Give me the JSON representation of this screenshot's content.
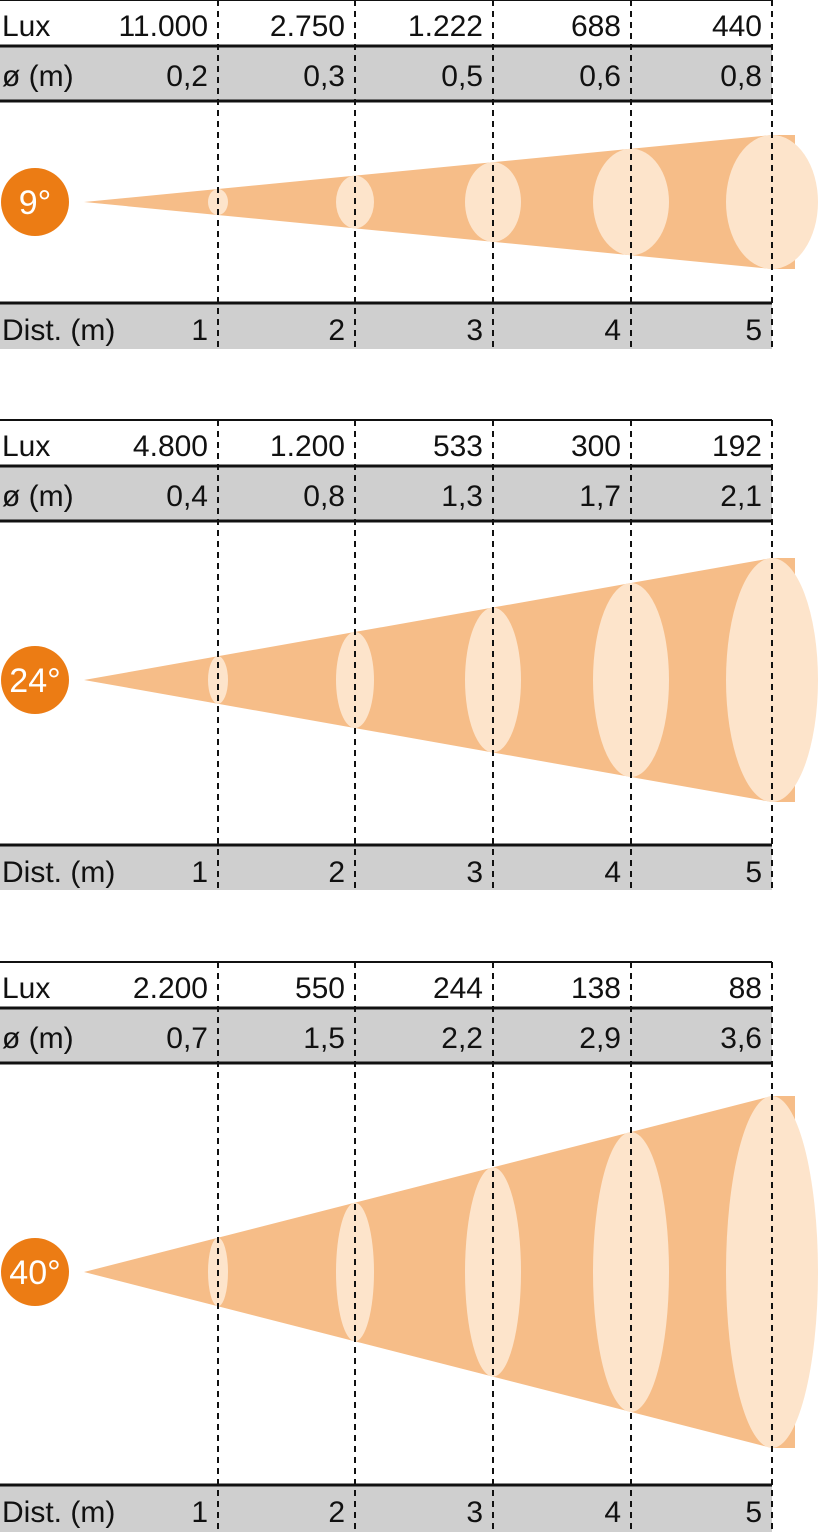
{
  "colors": {
    "beam": "#f6bd88",
    "spot": "#fde4cb",
    "badge": "#ec7c14",
    "band": "#cfcfcf",
    "rule": "#111111"
  },
  "chart_data": [
    {
      "type": "table",
      "beam_label": "9°",
      "beam_angle_deg": 9,
      "lux_label": "Lux",
      "diameter_label": "ø (m)",
      "distance_label": "Dist. (m)",
      "distances": [
        "1",
        "2",
        "3",
        "4",
        "5"
      ],
      "lux": [
        "11.000",
        "2.750",
        "1.222",
        "688",
        "440"
      ],
      "diameter": [
        "0,2",
        "0,3",
        "0,5",
        "0,6",
        "0,8"
      ]
    },
    {
      "type": "table",
      "beam_label": "24°",
      "beam_angle_deg": 24,
      "lux_label": "Lux",
      "diameter_label": "ø (m)",
      "distance_label": "Dist. (m)",
      "distances": [
        "1",
        "2",
        "3",
        "4",
        "5"
      ],
      "lux": [
        "4.800",
        "1.200",
        "533",
        "300",
        "192"
      ],
      "diameter": [
        "0,4",
        "0,8",
        "1,3",
        "1,7",
        "2,1"
      ]
    },
    {
      "type": "table",
      "beam_label": "40°",
      "beam_angle_deg": 40,
      "lux_label": "Lux",
      "diameter_label": "ø (m)",
      "distance_label": "Dist. (m)",
      "distances": [
        "1",
        "2",
        "3",
        "4",
        "5"
      ],
      "lux": [
        "2.200",
        "550",
        "244",
        "138",
        "88"
      ],
      "diameter": [
        "0,7",
        "1,5",
        "2,2",
        "2,9",
        "3,6"
      ]
    }
  ]
}
